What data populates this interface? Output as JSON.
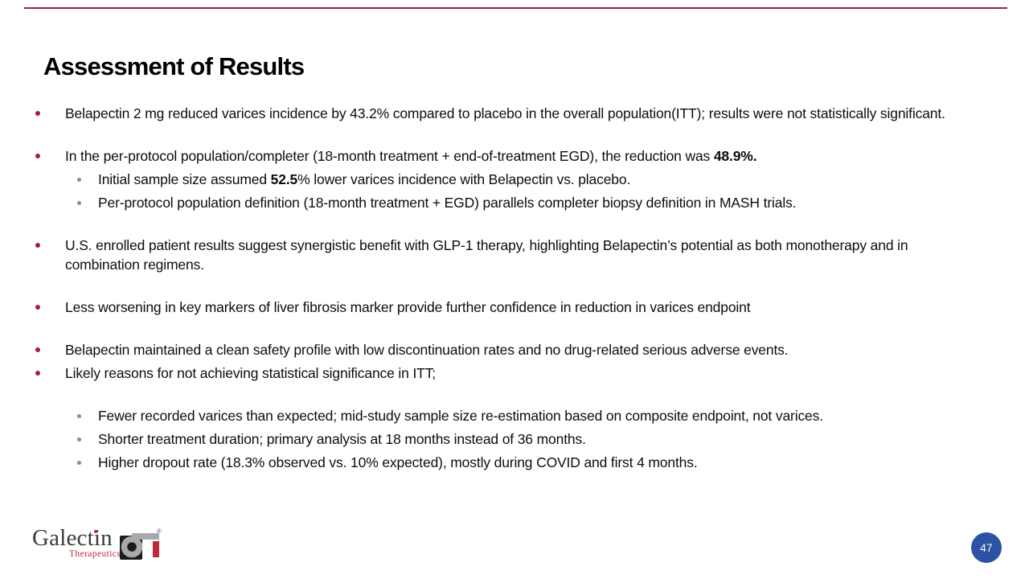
{
  "slide": {
    "title": "Assessment of Results",
    "page_number": "47"
  },
  "colors": {
    "accent_red": "#A32035",
    "sub_bullet_gray": "#8A8A8A",
    "page_badge_blue": "#2B52A3",
    "logo_red": "#C22839",
    "logo_dark": "#3B3B3D",
    "top_rule_red": "#9E2136",
    "body_text": "#0D0D0D"
  },
  "content": {
    "groups": [
      {
        "items": [
          {
            "level": 0,
            "segments": [
              {
                "text": "Belapectin 2 mg reduced varices incidence by 43.2% compared to placebo in the overall population(ITT); results were not statistically significant.",
                "bold": false
              }
            ]
          }
        ]
      },
      {
        "items": [
          {
            "level": 0,
            "segments": [
              {
                "text": "In the per-protocol population/completer (18-month treatment + end-of-treatment EGD), the reduction was ",
                "bold": false
              },
              {
                "text": "48.9%.",
                "bold": true
              }
            ]
          },
          {
            "level": 1,
            "segments": [
              {
                "text": "Initial sample size assumed ",
                "bold": false
              },
              {
                "text": "52.5",
                "bold": true
              },
              {
                "text": "% lower varices incidence with Belapectin vs. placebo.",
                "bold": false
              }
            ]
          },
          {
            "level": 1,
            "segments": [
              {
                "text": "Per-protocol population definition (18-month treatment + EGD) parallels completer biopsy definition in MASH trials.",
                "bold": false
              }
            ]
          }
        ]
      },
      {
        "items": [
          {
            "level": 0,
            "segments": [
              {
                "text": "U.S. enrolled patient results suggest synergistic benefit with GLP-1 therapy, highlighting Belapectin’s potential as both monotherapy and in combination regimens.",
                "bold": false
              }
            ]
          }
        ]
      },
      {
        "items": [
          {
            "level": 0,
            "segments": [
              {
                "text": "Less worsening in key markers of liver fibrosis marker provide further confidence in reduction in varices endpoint",
                "bold": false
              }
            ]
          }
        ]
      },
      {
        "items": [
          {
            "level": 0,
            "segments": [
              {
                "text": "Belapectin maintained a clean safety profile with low discontinuation rates and no drug-related serious adverse events.",
                "bold": false
              }
            ]
          },
          {
            "level": 0,
            "segments": [
              {
                "text": "Likely reasons for not achieving statistical significance in ITT;",
                "bold": false
              }
            ]
          }
        ]
      },
      {
        "items": [
          {
            "level": 1,
            "segments": [
              {
                "text": "Fewer recorded varices than expected; mid-study sample size re-estimation based on composite endpoint, not varices.",
                "bold": false
              }
            ]
          },
          {
            "level": 1,
            "segments": [
              {
                "text": "Shorter treatment duration; primary analysis at 18 months instead of 36 months.",
                "bold": false
              }
            ]
          },
          {
            "level": 1,
            "segments": [
              {
                "text": "Higher dropout rate (18.3% observed vs. 10% expected), mostly during COVID and first 4 months.",
                "bold": false
              }
            ]
          }
        ]
      }
    ]
  },
  "logo": {
    "name": "Galectin",
    "subtitle": "Therapeutics",
    "registered_mark": "®"
  }
}
